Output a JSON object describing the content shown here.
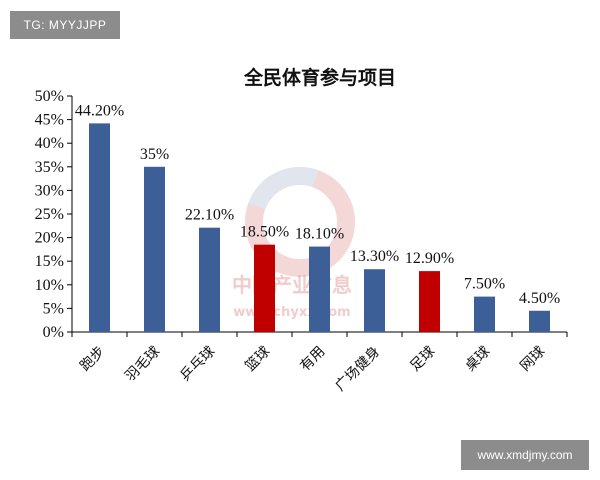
{
  "tag": "TG: MYYJJPP",
  "footer_tag": "www.xmdjmy.com",
  "watermark": {
    "cn": "中国产业信息",
    "url": "www.chyxx.com"
  },
  "colors": {
    "bar": "#3d5f98",
    "highlight": "#c00000",
    "axis": "#000000",
    "watermark": "#e08f8f"
  },
  "chart_data": {
    "type": "bar",
    "title": "全民体育参与项目",
    "categories": [
      "跑步",
      "羽毛球",
      "乒乓球",
      "篮球",
      "有用",
      "广场健身",
      "足球",
      "桌球",
      "网球"
    ],
    "values": [
      44.2,
      35,
      22.1,
      18.5,
      18.1,
      13.3,
      12.9,
      7.5,
      4.5
    ],
    "data_labels": [
      "44.20%",
      "35%",
      "22.10%",
      "18.50%",
      "18.10%",
      "13.30%",
      "12.90%",
      "7.50%",
      "4.50%"
    ],
    "highlighted": [
      false,
      false,
      false,
      true,
      false,
      false,
      true,
      false,
      false
    ],
    "ylim": [
      0,
      50
    ],
    "yticks": [
      "0%",
      "5%",
      "10%",
      "15%",
      "20%",
      "25%",
      "30%",
      "35%",
      "40%",
      "45%",
      "50%"
    ],
    "xlabel": "",
    "ylabel": "",
    "grid": false,
    "legend": "none"
  }
}
